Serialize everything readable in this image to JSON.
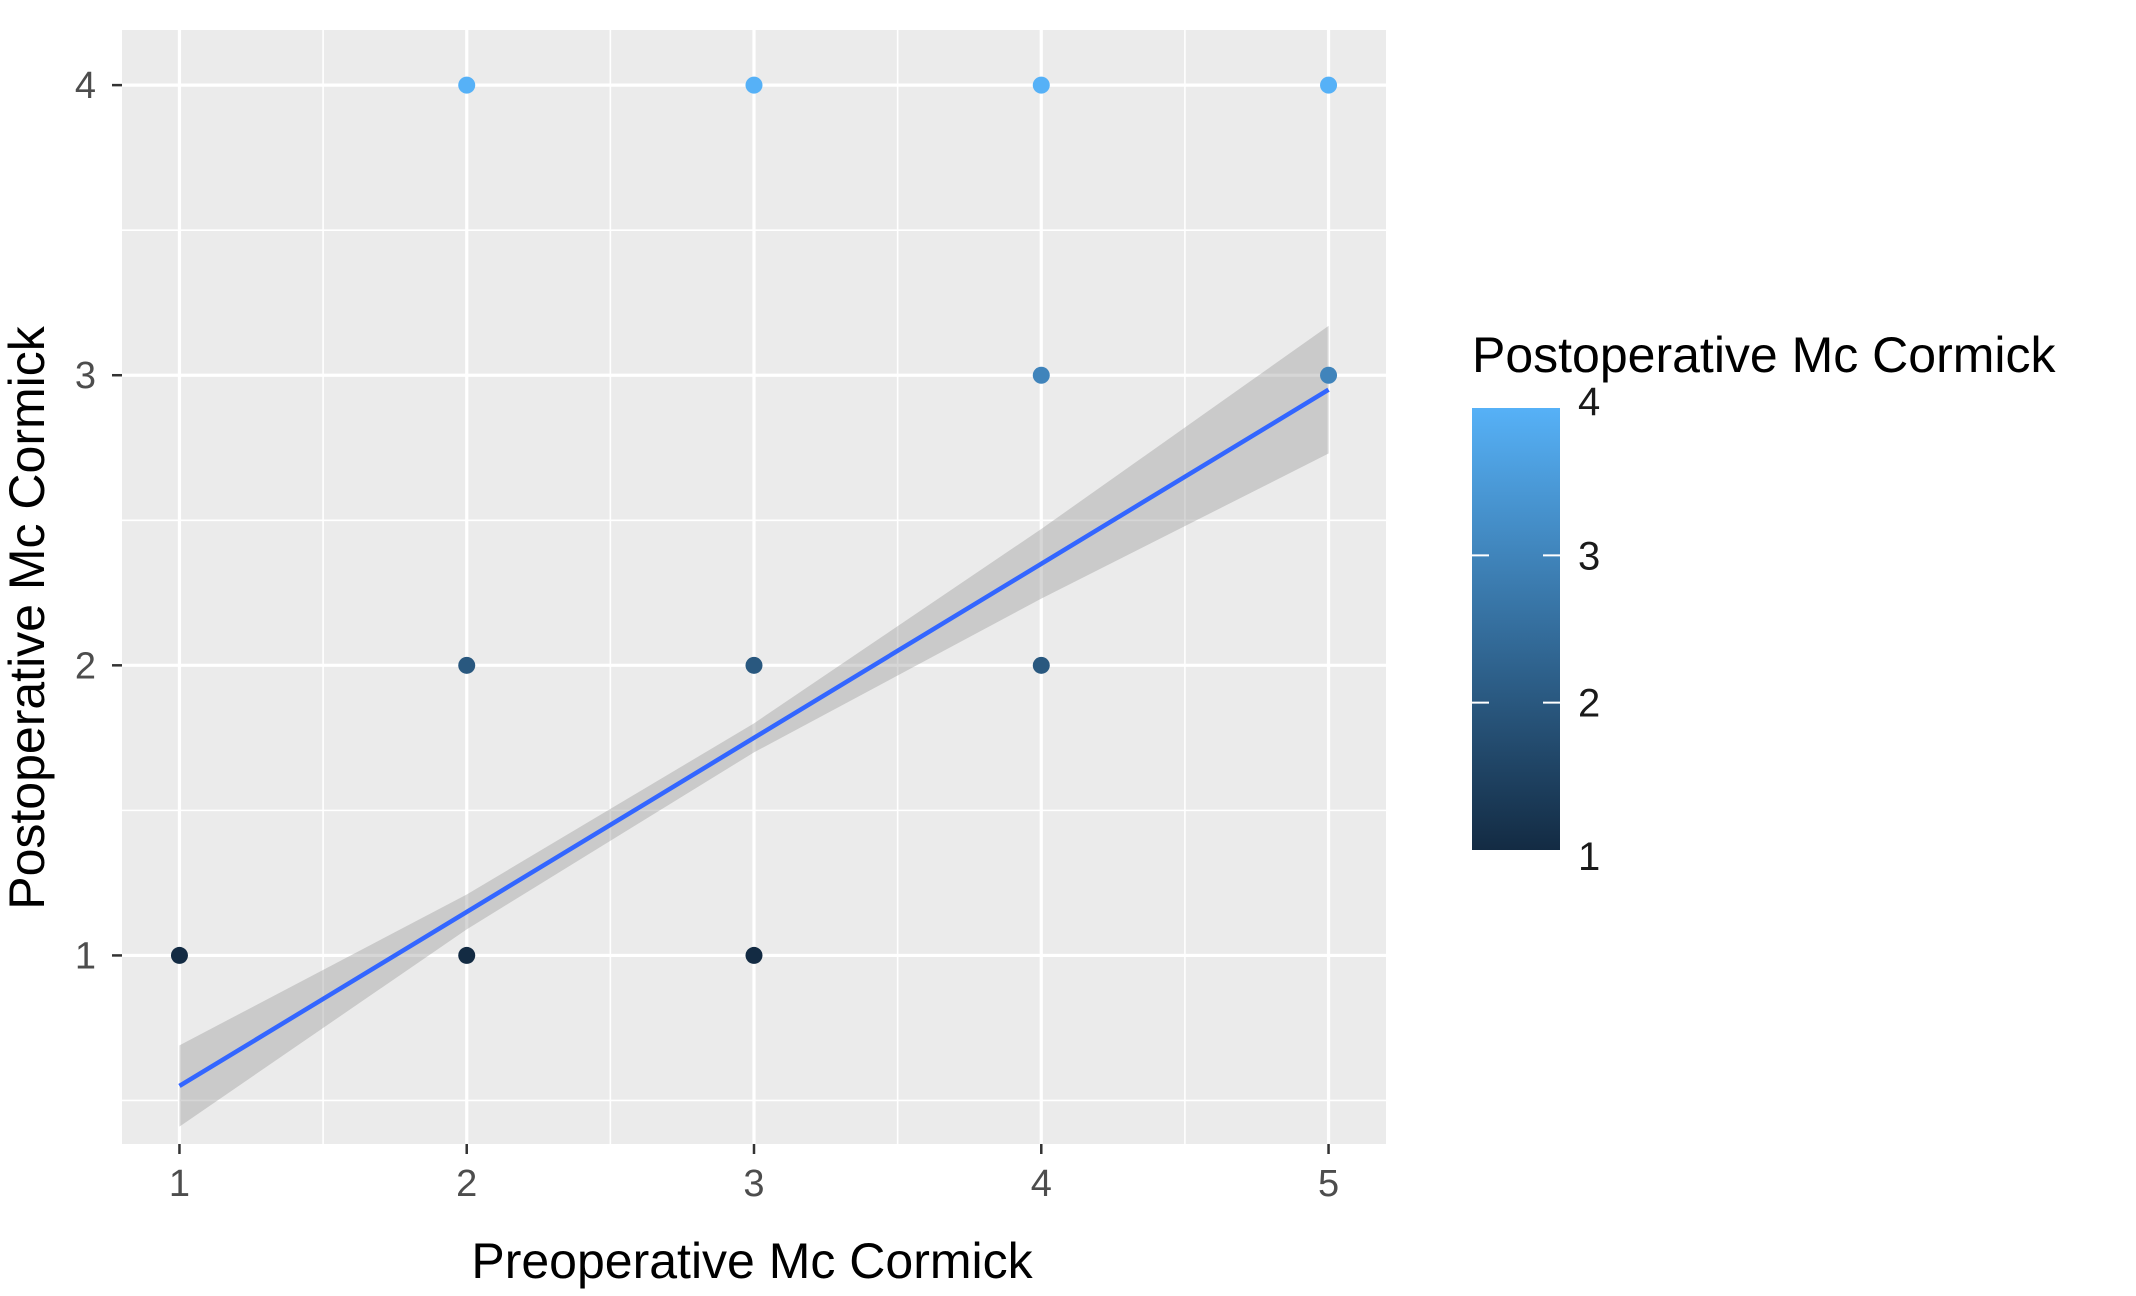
{
  "chart_data": {
    "type": "scatter",
    "title": "",
    "xlabel": "Preoperative Mc Cormick",
    "ylabel": "Postoperative Mc Cormick",
    "xlim": [
      0.8,
      5.2
    ],
    "ylim": [
      0.35,
      4.19
    ],
    "x_ticks": [
      1,
      2,
      3,
      4,
      5
    ],
    "y_ticks": [
      1,
      2,
      3,
      4
    ],
    "grid": true,
    "points": [
      {
        "x": 1,
        "y": 1
      },
      {
        "x": 2,
        "y": 1
      },
      {
        "x": 3,
        "y": 1
      },
      {
        "x": 2,
        "y": 2
      },
      {
        "x": 3,
        "y": 2
      },
      {
        "x": 4,
        "y": 2
      },
      {
        "x": 4,
        "y": 3
      },
      {
        "x": 5,
        "y": 3
      },
      {
        "x": 2,
        "y": 4
      },
      {
        "x": 3,
        "y": 4
      },
      {
        "x": 4,
        "y": 4
      },
      {
        "x": 5,
        "y": 4
      }
    ],
    "fit_line": {
      "x": [
        1,
        2,
        3,
        4,
        5
      ],
      "y": [
        0.55,
        1.15,
        1.75,
        2.35,
        2.95
      ],
      "ci_lower": [
        0.41,
        1.09,
        1.7,
        2.23,
        2.73
      ],
      "ci_upper": [
        0.69,
        1.21,
        1.8,
        2.47,
        3.17
      ],
      "color": "#3366ff",
      "ci_color": "#999999"
    },
    "color_scale": {
      "title": "Postoperative Mc Cormick",
      "min": 1,
      "max": 4,
      "ticks": [
        1,
        2,
        3,
        4
      ],
      "low_color": "#132b43",
      "high_color": "#56b1f7"
    },
    "legend_position": "right",
    "panel_background": "#ebebeb",
    "grid_color": "#ffffff"
  }
}
